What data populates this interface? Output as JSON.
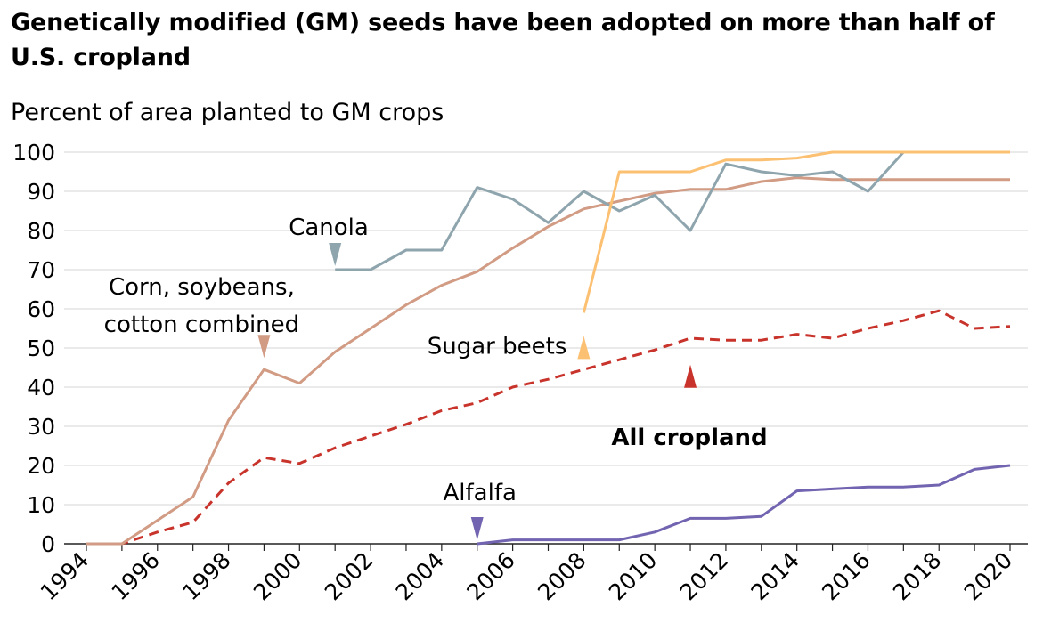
{
  "chart_data": {
    "type": "line",
    "title": "Genetically modified (GM) seeds have been adopted on more than half of U.S. cropland",
    "subtitle": "Percent of area planted to GM crops",
    "ylim": [
      0,
      100
    ],
    "yticks": [
      0,
      10,
      20,
      30,
      40,
      50,
      60,
      70,
      80,
      90,
      100
    ],
    "xticks": [
      "1994",
      "1996",
      "1998",
      "2000",
      "2002",
      "2004",
      "2006",
      "2008",
      "2010",
      "2012",
      "2014",
      "2016",
      "2018",
      "2020"
    ],
    "xlim": [
      1993.9,
      2020.1
    ],
    "grid": true,
    "series": [
      {
        "name": "Canola",
        "color": "#8fa5ae",
        "style": "solid",
        "x": [
          2001,
          2002,
          2003,
          2004,
          2005,
          2006,
          2007,
          2008,
          2009,
          2010,
          2011,
          2012,
          2013,
          2014,
          2015,
          2016,
          2017
        ],
        "y": [
          70,
          70,
          75,
          75,
          91,
          88,
          82,
          90,
          85,
          89,
          80,
          97,
          95,
          94,
          95,
          90,
          100
        ]
      },
      {
        "name": "Corn, soybeans, cotton combined",
        "color": "#d19b84",
        "style": "solid",
        "x": [
          1994,
          1995,
          1996,
          1997,
          1998,
          1999,
          2000,
          2001,
          2002,
          2003,
          2004,
          2005,
          2006,
          2007,
          2008,
          2009,
          2010,
          2011,
          2012,
          2013,
          2014,
          2015,
          2016,
          2017,
          2018,
          2019,
          2020
        ],
        "y": [
          0,
          0,
          6,
          12,
          31.5,
          44.5,
          41,
          49,
          55,
          61,
          66,
          69.5,
          75.5,
          81,
          85.5,
          87.5,
          89.5,
          90.5,
          90.5,
          92.5,
          93.5,
          93,
          93,
          93,
          93,
          93,
          93
        ]
      },
      {
        "name": "Sugar beets",
        "color": "#fcc072",
        "style": "solid",
        "x": [
          2008,
          2009,
          2010,
          2011,
          2012,
          2013,
          2014,
          2015,
          2016,
          2017,
          2018,
          2019,
          2020
        ],
        "y": [
          59,
          95,
          95,
          95,
          98,
          98,
          98.5,
          100,
          100,
          100,
          100,
          100,
          100
        ]
      },
      {
        "name": "All cropland",
        "color": "#c8342c",
        "style": "dashed",
        "x": [
          1994,
          1995,
          1996,
          1997,
          1998,
          1999,
          2000,
          2001,
          2002,
          2003,
          2004,
          2005,
          2006,
          2007,
          2008,
          2009,
          2010,
          2011,
          2012,
          2013,
          2014,
          2015,
          2016,
          2017,
          2018,
          2019,
          2020
        ],
        "y": [
          0,
          0,
          3,
          5.5,
          15.5,
          22,
          20.5,
          24.5,
          27.5,
          30.5,
          34,
          36,
          40,
          42,
          44.5,
          47,
          49.5,
          52.5,
          52,
          52,
          53.5,
          52.5,
          55,
          57,
          59.5,
          55,
          55.5
        ]
      },
      {
        "name": "Alfalfa",
        "color": "#7264b0",
        "style": "solid",
        "x": [
          2005,
          2006,
          2007,
          2008,
          2009,
          2010,
          2011,
          2012,
          2013,
          2014,
          2015,
          2016,
          2017,
          2018,
          2019,
          2020
        ],
        "y": [
          0,
          1,
          1,
          1,
          1,
          3,
          6.5,
          6.5,
          7,
          13.5,
          14,
          14.5,
          14.5,
          15,
          19,
          20
        ]
      }
    ],
    "annotations": [
      {
        "text": "Canola",
        "series": "Canola",
        "bold": false,
        "point": [
          2001,
          70
        ]
      },
      {
        "text": "Corn, soybeans,",
        "series": "Corn, soybeans, cotton combined",
        "bold": false,
        "point": [
          1999,
          44.5
        ]
      },
      {
        "text": "cotton combined",
        "series": "Corn, soybeans, cotton combined",
        "bold": false,
        "point": [
          1999,
          44.5
        ]
      },
      {
        "text": "Sugar beets",
        "series": "Sugar beets",
        "bold": false,
        "point": [
          2008,
          54
        ]
      },
      {
        "text": "All cropland",
        "series": "All cropland",
        "bold": true,
        "point": [
          2011,
          45.5
        ]
      },
      {
        "text": "Alfalfa",
        "series": "Alfalfa",
        "bold": false,
        "point": [
          2005,
          0
        ]
      }
    ]
  }
}
